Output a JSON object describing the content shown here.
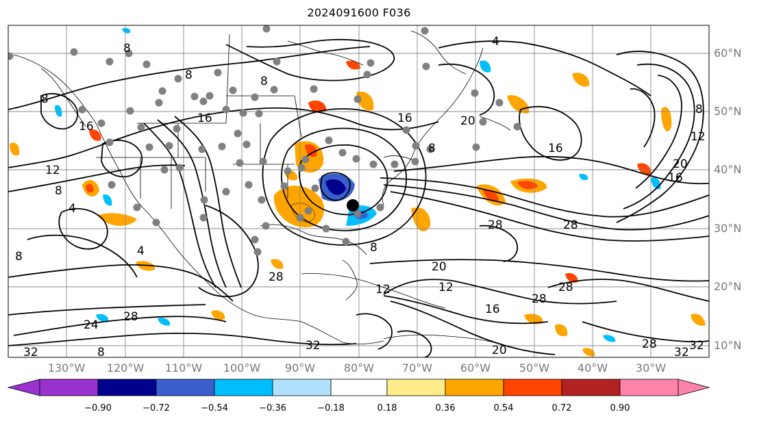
{
  "title": "2024091600 F036",
  "latitude_labels": [
    "60°N",
    "50°N",
    "40°N",
    "30°N",
    "20°N",
    "10°N"
  ],
  "longitude_labels": [
    "130°W",
    "120°W",
    "110°W",
    "100°W",
    "90°W",
    "80°W",
    "70°W",
    "60°W",
    "50°W",
    "40°W",
    "30°W"
  ],
  "contour_labels": [
    "8",
    "8",
    "8",
    "4",
    "8",
    "16",
    "16",
    "16",
    "12",
    "8",
    "4",
    "16",
    "20",
    "8",
    "16",
    "20",
    "12",
    "28",
    "28",
    "20",
    "12",
    "16",
    "28",
    "28",
    "24",
    "28",
    "32",
    "8",
    "32",
    "20",
    "32",
    "28",
    "32",
    "12",
    "8",
    "8",
    "4",
    "8",
    "28"
  ],
  "colorbar": {
    "ticks": [
      "−0.90",
      "−0.72",
      "−0.54",
      "−0.36",
      "−0.18",
      "0.18",
      "0.36",
      "0.54",
      "0.72",
      "0.90"
    ],
    "colors": [
      "#9a32cd",
      "#00008b",
      "#3a5fcd",
      "#00bfff",
      "#b0e2ff",
      "#ffffff",
      "#ffec8b",
      "#ffa500",
      "#ff4500",
      "#b22222",
      "#ff82ab"
    ]
  },
  "colors": {
    "gridline": "#888888",
    "contour": "#000000",
    "marker": "#808080",
    "storm_center": "#000000"
  }
}
